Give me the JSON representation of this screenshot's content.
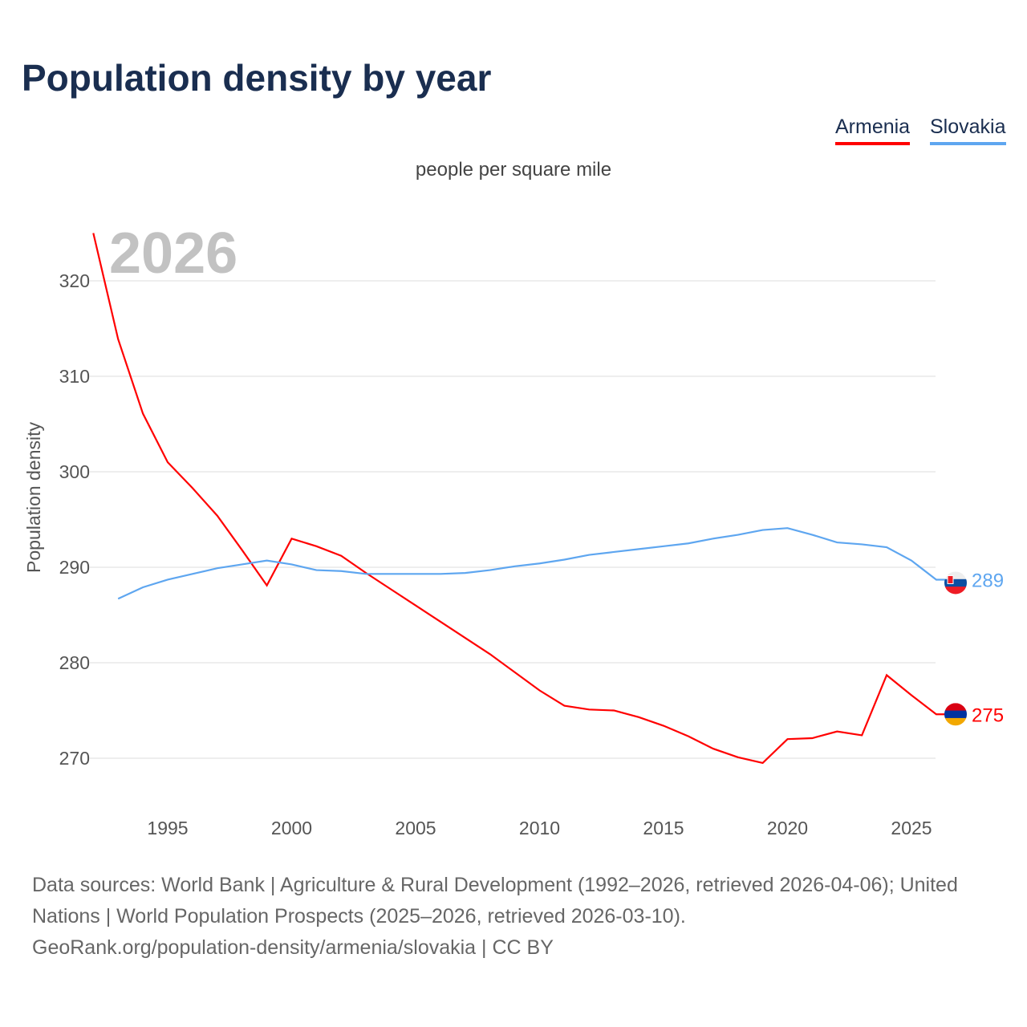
{
  "title": "Population density by year",
  "units": "people per square mile",
  "sources": "Data sources: World Bank | Agriculture & Rural Development (1992–2026, retrieved 2026-04-06); United Nations | World Population Prospects (2025–2026, retrieved 2026-03-10).",
  "attribution": "GeoRank.org/population-density/armenia/slovakia | CC BY",
  "chart_data": {
    "type": "line",
    "title": "Population density by year",
    "subtitle": "people per square mile",
    "ylabel": "Population density",
    "xlabel": "",
    "year_watermark": "2026",
    "ylim": [
      265,
      325
    ],
    "xlim": [
      1992,
      2026
    ],
    "yticks": [
      270,
      280,
      290,
      300,
      310,
      320
    ],
    "xticks": [
      1995,
      2000,
      2005,
      2010,
      2015,
      2020,
      2025
    ],
    "grid": true,
    "legend_position": "top-right",
    "series": [
      {
        "name": "Armenia",
        "color": "#ff0000",
        "end_label": "275",
        "flag": "armenia-flag",
        "x": [
          1992,
          1993,
          1994,
          1995,
          1996,
          1997,
          1998,
          1999,
          2000,
          2001,
          2002,
          2003,
          2004,
          2005,
          2006,
          2007,
          2008,
          2009,
          2010,
          2011,
          2012,
          2013,
          2014,
          2015,
          2016,
          2017,
          2018,
          2019,
          2020,
          2021,
          2022,
          2023,
          2024,
          2025,
          2026
        ],
        "values": [
          325.0,
          313.9,
          306.1,
          301.0,
          298.3,
          295.4,
          291.8,
          288.1,
          293.0,
          292.2,
          291.2,
          289.4,
          287.7,
          286.0,
          284.3,
          282.6,
          280.9,
          279.0,
          277.1,
          275.5,
          275.1,
          275.0,
          274.3,
          273.4,
          272.3,
          271.0,
          270.1,
          269.5,
          272.0,
          272.1,
          272.8,
          272.4,
          278.7,
          276.6,
          274.6
        ]
      },
      {
        "name": "Slovakia",
        "color": "#5ea6f0",
        "end_label": "289",
        "flag": "slovakia-flag",
        "x": [
          1993,
          1994,
          1995,
          1996,
          1997,
          1998,
          1999,
          2000,
          2001,
          2002,
          2003,
          2004,
          2005,
          2006,
          2007,
          2008,
          2009,
          2010,
          2011,
          2012,
          2013,
          2014,
          2015,
          2016,
          2017,
          2018,
          2019,
          2020,
          2021,
          2022,
          2023,
          2024,
          2025,
          2026
        ],
        "values": [
          286.7,
          287.9,
          288.7,
          289.3,
          289.9,
          290.3,
          290.7,
          290.3,
          289.7,
          289.6,
          289.3,
          289.3,
          289.3,
          289.3,
          289.4,
          289.7,
          290.1,
          290.4,
          290.8,
          291.3,
          291.6,
          291.9,
          292.2,
          292.5,
          293.0,
          293.4,
          293.9,
          294.1,
          293.4,
          292.6,
          292.4,
          292.1,
          290.7,
          288.7
        ]
      }
    ]
  }
}
